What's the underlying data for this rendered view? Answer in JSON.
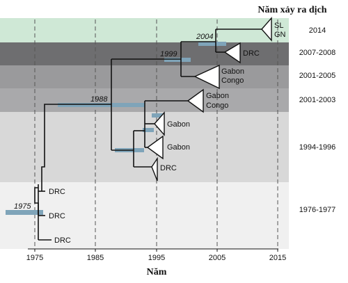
{
  "header": {
    "title": "Năm xảy ra dịch"
  },
  "x_axis": {
    "label": "Năm",
    "ticks": [
      "1975",
      "1985",
      "1995",
      "2005",
      "2015"
    ]
  },
  "bands": [
    {
      "label": "2014",
      "color": "#cfe8d6"
    },
    {
      "label": "2007-2008",
      "color": "#6e6e70"
    },
    {
      "label": "2001-2005",
      "color": "#9a9a9c"
    },
    {
      "label": "2001-2003",
      "color": "#a9a9ab"
    },
    {
      "label": "1994-1996",
      "color": "#d8d8d8"
    },
    {
      "label": "1976-1977",
      "color": "#f0f0f0"
    }
  ],
  "nodes": [
    {
      "label": "2004"
    },
    {
      "label": "1999"
    },
    {
      "label": "1988"
    },
    {
      "label": "1975"
    }
  ],
  "clades": {
    "sl": "SL",
    "gn": "GN",
    "drc_2007": "DRC",
    "gabon_2001": "Gabon",
    "congo_2001": "Congo",
    "gabon_2003": "Gabon",
    "congo_2003": "Congo",
    "gabon_a": "Gabon",
    "gabon_b": "Gabon",
    "drc_1995": "DRC",
    "drc_1977a": "DRC",
    "drc_1977b": "DRC",
    "drc_1976": "DRC"
  },
  "colors": {
    "tree": "#111111",
    "ci_bar": "#7fa4b9",
    "gridline": "#555555"
  }
}
